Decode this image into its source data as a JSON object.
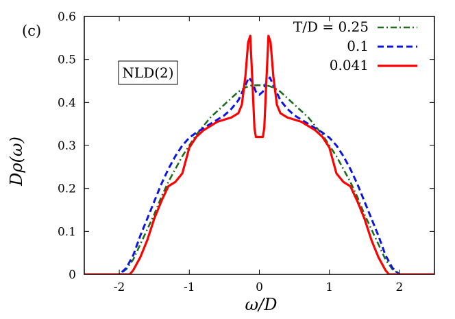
{
  "chart_data": {
    "type": "line",
    "panel_label": "(c)",
    "annotation": "NLD(2)",
    "xlabel": "ω/D",
    "ylabel": "Dρ(ω)",
    "xlim": [
      -2.5,
      2.5
    ],
    "ylim": [
      0,
      0.6
    ],
    "grid": false,
    "legend_position": "top-right",
    "x_ticks": [
      -2,
      -1,
      0,
      1,
      2
    ],
    "x_tick_labels": [
      "-2",
      "-1",
      "0",
      "1",
      "2"
    ],
    "y_ticks": [
      0,
      0.1,
      0.2,
      0.3,
      0.4,
      0.5,
      0.6
    ],
    "y_tick_labels": [
      "0",
      "0.1",
      "0.2",
      "0.3",
      "0.4",
      "0.5",
      "0.6"
    ],
    "series": [
      {
        "name": "T/D = 0.25",
        "color": "#1e6b1e",
        "dash": "dashdot",
        "x": [
          -2.5,
          -2.0,
          -1.9,
          -1.8,
          -1.7,
          -1.6,
          -1.5,
          -1.4,
          -1.3,
          -1.2,
          -1.1,
          -1.0,
          -0.9,
          -0.8,
          -0.7,
          -0.6,
          -0.5,
          -0.4,
          -0.3,
          -0.2,
          -0.1,
          0.0,
          0.1,
          0.2,
          0.3,
          0.4,
          0.5,
          0.6,
          0.7,
          0.8,
          0.9,
          1.0,
          1.1,
          1.2,
          1.3,
          1.4,
          1.5,
          1.6,
          1.7,
          1.8,
          1.9,
          2.0,
          2.5
        ],
        "y": [
          0.0,
          0.0,
          0.012,
          0.035,
          0.07,
          0.105,
          0.14,
          0.18,
          0.215,
          0.245,
          0.275,
          0.3,
          0.325,
          0.345,
          0.365,
          0.38,
          0.395,
          0.41,
          0.425,
          0.435,
          0.44,
          0.44,
          0.44,
          0.435,
          0.425,
          0.41,
          0.395,
          0.38,
          0.365,
          0.345,
          0.325,
          0.3,
          0.275,
          0.245,
          0.215,
          0.18,
          0.14,
          0.105,
          0.07,
          0.035,
          0.012,
          0.0,
          0.0
        ]
      },
      {
        "name": "0.1",
        "color": "#0a14e6",
        "dash": "dashed",
        "x": [
          -2.5,
          -2.0,
          -1.9,
          -1.8,
          -1.7,
          -1.6,
          -1.5,
          -1.4,
          -1.3,
          -1.2,
          -1.1,
          -1.0,
          -0.9,
          -0.8,
          -0.7,
          -0.6,
          -0.5,
          -0.4,
          -0.3,
          -0.2,
          -0.15,
          -0.1,
          -0.05,
          0.0,
          0.05,
          0.1,
          0.15,
          0.2,
          0.3,
          0.4,
          0.5,
          0.6,
          0.7,
          0.8,
          0.9,
          1.0,
          1.1,
          1.2,
          1.3,
          1.4,
          1.5,
          1.6,
          1.7,
          1.8,
          1.9,
          2.0,
          2.5
        ],
        "y": [
          0.0,
          0.0,
          0.015,
          0.045,
          0.09,
          0.13,
          0.17,
          0.21,
          0.245,
          0.275,
          0.3,
          0.318,
          0.33,
          0.34,
          0.35,
          0.36,
          0.37,
          0.385,
          0.405,
          0.44,
          0.458,
          0.447,
          0.425,
          0.418,
          0.425,
          0.447,
          0.458,
          0.44,
          0.405,
          0.385,
          0.37,
          0.36,
          0.35,
          0.34,
          0.33,
          0.318,
          0.3,
          0.275,
          0.245,
          0.21,
          0.17,
          0.13,
          0.09,
          0.045,
          0.015,
          0.0,
          0.0
        ]
      },
      {
        "name": "0.041",
        "color": "#ff0000",
        "dash": "solid",
        "x": [
          -2.5,
          -1.85,
          -1.8,
          -1.7,
          -1.6,
          -1.5,
          -1.4,
          -1.3,
          -1.2,
          -1.1,
          -1.0,
          -0.9,
          -0.8,
          -0.7,
          -0.6,
          -0.5,
          -0.4,
          -0.3,
          -0.25,
          -0.2,
          -0.16,
          -0.13,
          -0.1,
          -0.07,
          -0.05,
          0.0,
          0.05,
          0.07,
          0.1,
          0.13,
          0.16,
          0.2,
          0.25,
          0.3,
          0.4,
          0.5,
          0.6,
          0.7,
          0.8,
          0.9,
          1.0,
          1.1,
          1.2,
          1.3,
          1.4,
          1.5,
          1.6,
          1.7,
          1.8,
          1.85,
          2.5
        ],
        "y": [
          0.0,
          0.0,
          0.01,
          0.04,
          0.08,
          0.13,
          0.17,
          0.205,
          0.215,
          0.235,
          0.295,
          0.32,
          0.335,
          0.345,
          0.355,
          0.36,
          0.365,
          0.375,
          0.395,
          0.46,
          0.54,
          0.555,
          0.45,
          0.34,
          0.32,
          0.32,
          0.32,
          0.34,
          0.45,
          0.555,
          0.54,
          0.46,
          0.395,
          0.375,
          0.365,
          0.36,
          0.355,
          0.345,
          0.335,
          0.32,
          0.295,
          0.235,
          0.215,
          0.205,
          0.17,
          0.13,
          0.08,
          0.04,
          0.01,
          0.0,
          0.0
        ]
      }
    ]
  }
}
